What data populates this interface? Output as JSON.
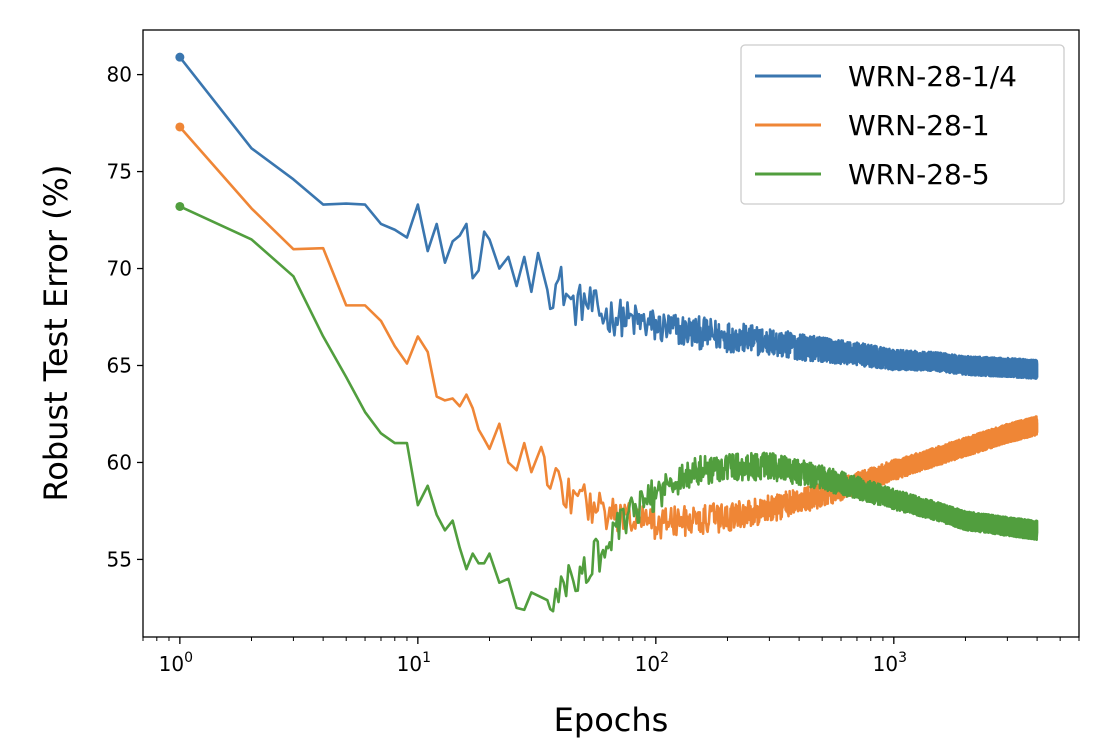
{
  "chart_data": {
    "type": "line",
    "xlabel": "Epochs",
    "ylabel": "Robust Test Error (%)",
    "xscale": "log",
    "xlim": [
      0.7,
      6000
    ],
    "ylim": [
      51,
      82.3
    ],
    "x_ticks": [
      {
        "value": 1,
        "base": "10",
        "exp": "0"
      },
      {
        "value": 10,
        "base": "10",
        "exp": "1"
      },
      {
        "value": 100,
        "base": "10",
        "exp": "2"
      },
      {
        "value": 1000,
        "base": "10",
        "exp": "3"
      }
    ],
    "y_ticks": [
      {
        "value": 55,
        "label": "55"
      },
      {
        "value": 60,
        "label": "60"
      },
      {
        "value": 65,
        "label": "65"
      },
      {
        "value": 70,
        "label": "70"
      },
      {
        "value": 75,
        "label": "75"
      },
      {
        "value": 80,
        "label": "80"
      }
    ],
    "grid": false,
    "legend_position": "top-right",
    "series": [
      {
        "name": "WRN-28-1/4",
        "color": "#3a76af",
        "points": [
          [
            1,
            80.9
          ],
          [
            2,
            76.2
          ],
          [
            3,
            74.6
          ],
          [
            4,
            73.3
          ],
          [
            5,
            73.35
          ],
          [
            6,
            73.3
          ],
          [
            7,
            72.3
          ],
          [
            8,
            72.0
          ],
          [
            9,
            71.6
          ],
          [
            10,
            73.3
          ],
          [
            11,
            70.9
          ],
          [
            12,
            72.3
          ],
          [
            13,
            70.3
          ],
          [
            14,
            71.4
          ],
          [
            15,
            71.7
          ],
          [
            16,
            72.3
          ],
          [
            17,
            69.5
          ],
          [
            18,
            69.9
          ],
          [
            19,
            71.9
          ],
          [
            20,
            71.5
          ],
          [
            22,
            70.0
          ],
          [
            24,
            70.6
          ],
          [
            26,
            69.1
          ],
          [
            28,
            70.6
          ],
          [
            30,
            68.8
          ],
          [
            32,
            70.8
          ],
          [
            35,
            68.9
          ],
          [
            40,
            69.2
          ],
          [
            45,
            68.0
          ],
          [
            50,
            68.3
          ],
          [
            60,
            67.6
          ],
          [
            70,
            67.5
          ],
          [
            80,
            67.3
          ],
          [
            100,
            67.0
          ],
          [
            130,
            66.8
          ],
          [
            170,
            66.6
          ],
          [
            200,
            66.5
          ],
          [
            300,
            66.2
          ],
          [
            500,
            65.8
          ],
          [
            700,
            65.6
          ],
          [
            1000,
            65.3
          ],
          [
            1500,
            65.2
          ],
          [
            2000,
            65.0
          ],
          [
            3000,
            64.9
          ],
          [
            4000,
            64.8
          ]
        ],
        "noise": [
          0.3,
          1.1
        ]
      },
      {
        "name": "WRN-28-1",
        "color": "#ef8636",
        "points": [
          [
            1,
            77.3
          ],
          [
            2,
            73.1
          ],
          [
            3,
            71.0
          ],
          [
            4,
            71.05
          ],
          [
            5,
            68.1
          ],
          [
            6,
            68.1
          ],
          [
            7,
            67.3
          ],
          [
            8,
            66.0
          ],
          [
            9,
            65.1
          ],
          [
            10,
            66.5
          ],
          [
            11,
            65.7
          ],
          [
            12,
            63.4
          ],
          [
            13,
            63.2
          ],
          [
            14,
            63.3
          ],
          [
            15,
            62.9
          ],
          [
            16,
            63.5
          ],
          [
            17,
            62.8
          ],
          [
            18,
            61.7
          ],
          [
            19,
            61.2
          ],
          [
            20,
            60.7
          ],
          [
            22,
            62.0
          ],
          [
            24,
            60.0
          ],
          [
            26,
            59.6
          ],
          [
            28,
            61.0
          ],
          [
            30,
            59.5
          ],
          [
            33,
            60.8
          ],
          [
            36,
            59.3
          ],
          [
            40,
            58.5
          ],
          [
            50,
            58.0
          ],
          [
            60,
            57.5
          ],
          [
            70,
            57.2
          ],
          [
            80,
            57.0
          ],
          [
            100,
            56.9
          ],
          [
            150,
            57.0
          ],
          [
            200,
            57.2
          ],
          [
            300,
            57.6
          ],
          [
            400,
            58.0
          ],
          [
            500,
            58.3
          ],
          [
            700,
            58.9
          ],
          [
            1000,
            59.6
          ],
          [
            1500,
            60.3
          ],
          [
            2000,
            60.8
          ],
          [
            3000,
            61.5
          ],
          [
            4000,
            61.9
          ]
        ],
        "noise": [
          0.3,
          1.0
        ]
      },
      {
        "name": "WRN-28-5",
        "color": "#519e3e",
        "points": [
          [
            1,
            73.2
          ],
          [
            2,
            71.5
          ],
          [
            3,
            69.6
          ],
          [
            4,
            66.5
          ],
          [
            5,
            64.4
          ],
          [
            6,
            62.6
          ],
          [
            7,
            61.5
          ],
          [
            8,
            61.0
          ],
          [
            9,
            61.0
          ],
          [
            10,
            57.8
          ],
          [
            11,
            58.8
          ],
          [
            12,
            57.3
          ],
          [
            13,
            56.5
          ],
          [
            14,
            57.0
          ],
          [
            15,
            55.6
          ],
          [
            16,
            54.5
          ],
          [
            17,
            55.3
          ],
          [
            18,
            54.8
          ],
          [
            19,
            54.8
          ],
          [
            20,
            55.3
          ],
          [
            22,
            53.8
          ],
          [
            24,
            54.0
          ],
          [
            26,
            52.5
          ],
          [
            28,
            52.4
          ],
          [
            30,
            53.3
          ],
          [
            35,
            52.9
          ],
          [
            40,
            53.6
          ],
          [
            45,
            53.8
          ],
          [
            50,
            54.5
          ],
          [
            60,
            55.5
          ],
          [
            70,
            56.6
          ],
          [
            80,
            57.4
          ],
          [
            100,
            58.4
          ],
          [
            130,
            59.3
          ],
          [
            170,
            59.7
          ],
          [
            200,
            59.8
          ],
          [
            300,
            59.8
          ],
          [
            400,
            59.5
          ],
          [
            500,
            59.2
          ],
          [
            700,
            58.7
          ],
          [
            1000,
            58.1
          ],
          [
            1500,
            57.5
          ],
          [
            2000,
            57.0
          ],
          [
            3000,
            56.7
          ],
          [
            4000,
            56.5
          ]
        ],
        "noise": [
          0.3,
          1.0
        ]
      }
    ]
  }
}
